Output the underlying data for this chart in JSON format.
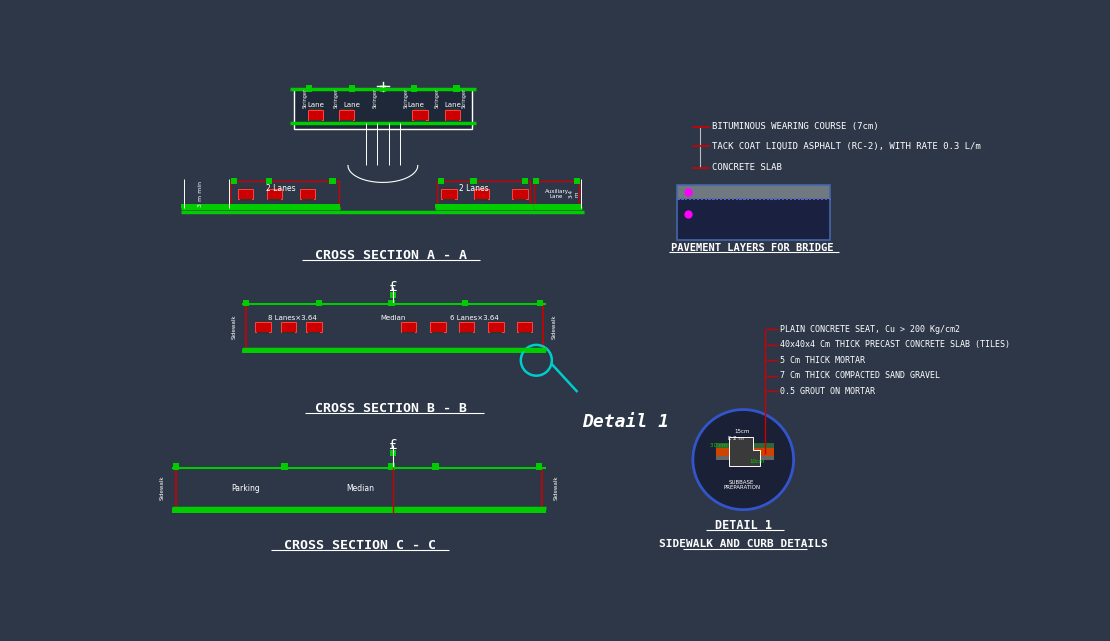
{
  "bg_color": "#2d3748",
  "white": "#ffffff",
  "red": "#cc0000",
  "green": "#00cc00",
  "cyan": "#00cccc",
  "magenta": "#ff00ff",
  "title": "CROSS SECTION A - A",
  "title_b": "CROSS SECTION B - B",
  "title_c": "CROSS SECTION C - C",
  "pavement_title": "PAVEMENT LAYERS FOR BRIDGE",
  "detail_title": "DETAIL 1",
  "detail_sub": "SIDEWALK AND CURB DETAILS",
  "layer1": "BITUMINOUS WEARING COURSE (7cm)",
  "layer2": "TACK COAT LIQUID ASPHALT (RC-2), WITH RATE 0.3 L/m",
  "layer3": "CONCRETE SLAB",
  "detail_text1": "PLAIN CONCRETE SEAT, Cu > 200 Kg/cm2",
  "detail_text2": "40x40x4 Cm THICK PRECAST CONCRETE SLAB (TILES)",
  "detail_text3": "5 Cm THICK MORTAR",
  "detail_text4": "7 Cm THICK COMPACTED SAND GRAVEL",
  "detail_text5": "0.5 GROUT ON MORTAR"
}
